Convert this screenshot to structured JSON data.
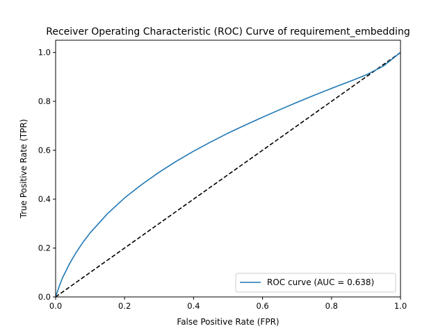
{
  "chart_data": {
    "type": "line",
    "title": "Receiver Operating Characteristic (ROC) Curve of requirement_embedding",
    "xlabel": "False Positive Rate (FPR)",
    "ylabel": "True Positive Rate (TPR)",
    "xlim": [
      0.0,
      1.0
    ],
    "ylim": [
      0.0,
      1.05
    ],
    "xticks": [
      "0.0",
      "0.2",
      "0.4",
      "0.6",
      "0.8",
      "1.0"
    ],
    "yticks": [
      "0.0",
      "0.2",
      "0.4",
      "0.6",
      "0.8",
      "1.0"
    ],
    "grid": false,
    "legend_position": "lower right",
    "series": [
      {
        "name": "ROC curve (AUC = 0.638)",
        "color": "#1f77b4",
        "style": "solid",
        "x": [
          0.0,
          0.01,
          0.02,
          0.04,
          0.06,
          0.08,
          0.1,
          0.15,
          0.2,
          0.25,
          0.3,
          0.35,
          0.4,
          0.45,
          0.5,
          0.55,
          0.6,
          0.65,
          0.7,
          0.75,
          0.8,
          0.85,
          0.9,
          0.95,
          1.0
        ],
        "y": [
          0.0,
          0.042,
          0.078,
          0.135,
          0.183,
          0.225,
          0.262,
          0.34,
          0.405,
          0.46,
          0.51,
          0.555,
          0.596,
          0.634,
          0.67,
          0.703,
          0.735,
          0.766,
          0.796,
          0.825,
          0.853,
          0.88,
          0.908,
          0.944,
          1.0
        ]
      },
      {
        "name": "",
        "color": "#000000",
        "style": "dashed",
        "x": [
          0.0,
          1.0
        ],
        "y": [
          0.0,
          1.0
        ]
      }
    ]
  }
}
